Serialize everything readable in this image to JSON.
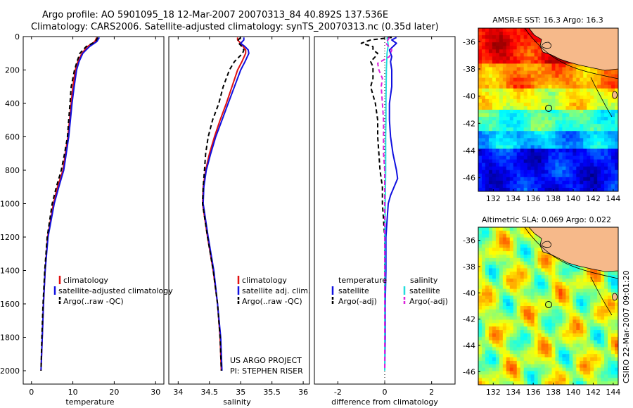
{
  "figure": {
    "title_line1": "Argo profile: AO 5901095_18 12-Mar-2007 20070313_84 40.892S 137.536E",
    "title_line2": "Climatology: CARS2006. Satellite-adjusted climatology: synTS_20070313.nc (0.35d later)",
    "credit_project": "US ARGO PROJECT",
    "credit_pi": "PI: STEPHEN RISER",
    "stamp": "CSIRO 22-Mar-2007 09:01:20"
  },
  "colors": {
    "climatology": "#e01010",
    "satellite": "#1010e0",
    "argo": "#000000",
    "sat_salinity": "#22dddd",
    "argo_salinity": "#dd22dd",
    "land": "#f6b98a"
  },
  "chart_data": [
    {
      "type": "line",
      "name": "temperature-profile",
      "xlabel": "temperature",
      "ylabel": "",
      "xlim": [
        -2,
        32
      ],
      "ylim": [
        2080,
        0
      ],
      "xticks": [
        0,
        10,
        20,
        30
      ],
      "yticks": [
        0,
        200,
        400,
        600,
        800,
        1000,
        1200,
        1400,
        1600,
        1800,
        2000
      ],
      "legend": [
        "climatology",
        "satellite-adjusted climatology",
        "Argo(..raw -QC)"
      ],
      "series": [
        {
          "name": "climatology",
          "color": "#e01010",
          "dash": "",
          "depth": [
            5,
            30,
            60,
            100,
            150,
            200,
            300,
            400,
            500,
            600,
            700,
            800,
            900,
            1000,
            1200,
            1400,
            1600,
            1800,
            2000
          ],
          "values": [
            15.8,
            15.3,
            13.5,
            12.2,
            11.2,
            10.6,
            10.0,
            9.6,
            9.2,
            8.8,
            8.2,
            7.6,
            6.3,
            5.3,
            3.9,
            3.3,
            2.9,
            2.6,
            2.3
          ]
        },
        {
          "name": "satellite",
          "color": "#1010e0",
          "dash": "",
          "depth": [
            5,
            30,
            60,
            100,
            150,
            200,
            300,
            400,
            500,
            600,
            700,
            800,
            900,
            1000,
            1200,
            1400,
            1600,
            1800,
            2000
          ],
          "values": [
            16.4,
            15.8,
            14.0,
            12.4,
            11.5,
            10.9,
            10.3,
            9.8,
            9.4,
            9.0,
            8.4,
            7.8,
            6.6,
            5.5,
            4.0,
            3.3,
            2.9,
            2.6,
            2.3
          ]
        },
        {
          "name": "Argo",
          "color": "#000000",
          "dash": "6 4",
          "depth": [
            5,
            30,
            60,
            100,
            150,
            200,
            300,
            400,
            500,
            600,
            700,
            800,
            900,
            1000,
            1200,
            1400,
            1600,
            1800,
            2000
          ],
          "values": [
            16.0,
            15.5,
            13.2,
            11.7,
            11.0,
            10.4,
            9.6,
            9.3,
            9.0,
            8.7,
            8.0,
            7.2,
            6.0,
            5.0,
            3.8,
            3.2,
            2.8,
            2.5,
            2.3
          ]
        }
      ]
    },
    {
      "type": "line",
      "name": "salinity-profile",
      "xlabel": "salinity",
      "ylabel": "",
      "xlim": [
        33.85,
        36.1
      ],
      "ylim": [
        2080,
        0
      ],
      "xticks": [
        34,
        34.5,
        35,
        35.5,
        36
      ],
      "yticks": [],
      "legend": [
        "climatology",
        "satellite adj. clim.",
        "Argo(..raw -QC)"
      ],
      "series": [
        {
          "name": "climatology",
          "color": "#e01010",
          "dash": "",
          "depth": [
            5,
            20,
            40,
            60,
            80,
            100,
            150,
            200,
            300,
            400,
            500,
            600,
            700,
            800,
            900,
            1000,
            1200,
            1400,
            1600,
            1800,
            2000
          ],
          "values": [
            34.95,
            34.95,
            35.0,
            35.04,
            35.08,
            35.08,
            35.02,
            34.95,
            34.86,
            34.77,
            34.67,
            34.58,
            34.5,
            34.44,
            34.4,
            34.39,
            34.47,
            34.56,
            34.63,
            34.67,
            34.69
          ]
        },
        {
          "name": "satellite",
          "color": "#1010e0",
          "dash": "",
          "depth": [
            5,
            20,
            40,
            60,
            80,
            100,
            150,
            200,
            300,
            400,
            500,
            600,
            700,
            800,
            900,
            1000,
            1200,
            1400,
            1600,
            1800,
            2000
          ],
          "values": [
            35.05,
            35.05,
            35.0,
            35.07,
            35.12,
            35.13,
            35.07,
            35.0,
            34.9,
            34.8,
            34.7,
            34.6,
            34.52,
            34.45,
            34.41,
            34.4,
            34.48,
            34.57,
            34.63,
            34.68,
            34.7
          ]
        },
        {
          "name": "Argo",
          "color": "#000000",
          "dash": "6 4",
          "depth": [
            5,
            20,
            40,
            60,
            80,
            100,
            150,
            200,
            300,
            400,
            500,
            600,
            700,
            800,
            900,
            1000,
            1200,
            1400,
            1600,
            1800,
            2000
          ],
          "values": [
            35.0,
            34.96,
            34.97,
            35.02,
            35.05,
            35.03,
            34.9,
            34.82,
            34.72,
            34.65,
            34.55,
            34.48,
            34.44,
            34.42,
            34.4,
            34.39,
            34.47,
            34.56,
            34.63,
            34.67,
            34.69
          ]
        }
      ]
    },
    {
      "type": "line",
      "name": "difference-profile",
      "xlabel": "difference from climatology",
      "ylabel": "",
      "xlim": [
        -3,
        3
      ],
      "ylim": [
        2080,
        0
      ],
      "xticks": [
        -2,
        0,
        2
      ],
      "yticks": [],
      "legend_groups": [
        "temperature",
        "salinity"
      ],
      "legend": [
        "satellite",
        "Argo(-adj)",
        "satellite",
        "Argo(-adj)"
      ],
      "series": [
        {
          "name": "temperature satellite",
          "color": "#1010e0",
          "dash": "",
          "depth": [
            5,
            20,
            40,
            80,
            120,
            150,
            200,
            300,
            400,
            500,
            600,
            700,
            800,
            850,
            900,
            950,
            1000,
            1200,
            1400,
            1600,
            1800,
            2000
          ],
          "values": [
            0.5,
            0.3,
            0.5,
            0.2,
            0.3,
            0.25,
            0.3,
            0.3,
            0.2,
            0.2,
            0.25,
            0.35,
            0.5,
            0.55,
            0.4,
            0.25,
            0.15,
            0.05,
            0.05,
            0.02,
            0.02,
            0.0
          ]
        },
        {
          "name": "temperature Argo(-adj)",
          "color": "#000000",
          "dash": "6 4",
          "depth": [
            5,
            20,
            40,
            60,
            80,
            100,
            120,
            150,
            180,
            200,
            250,
            300,
            400,
            500,
            600,
            700,
            800,
            900,
            1000,
            1200,
            1400,
            1600,
            1800,
            2000
          ],
          "values": [
            0.3,
            -0.6,
            -1.0,
            -0.5,
            -0.5,
            -0.3,
            -0.4,
            -0.6,
            -0.5,
            -0.5,
            -0.5,
            -0.6,
            -0.4,
            -0.3,
            -0.3,
            -0.25,
            -0.2,
            -0.1,
            -0.1,
            0.0,
            0.0,
            0.0,
            0.0,
            0.0
          ]
        },
        {
          "name": "salinity satellite",
          "color": "#22dddd",
          "dash": "",
          "depth": [
            5,
            50,
            100,
            200,
            300,
            400,
            500,
            600,
            800,
            1000,
            1200,
            1400,
            1600,
            1800,
            2000
          ],
          "values": [
            0.1,
            0.15,
            0.1,
            0.07,
            0.06,
            0.05,
            0.05,
            0.04,
            0.04,
            0.02,
            0.01,
            0.01,
            0.0,
            0.0,
            0.0
          ]
        },
        {
          "name": "salinity Argo(-adj)",
          "color": "#dd22dd",
          "dash": "6 4",
          "depth": [
            5,
            40,
            80,
            120,
            160,
            200,
            250,
            300,
            400,
            500,
            600,
            700,
            800,
            900,
            1000,
            1200,
            1400,
            1600,
            1800,
            2000
          ],
          "values": [
            0.2,
            0.05,
            0.3,
            0.2,
            -0.3,
            -0.25,
            -0.1,
            -0.15,
            -0.1,
            -0.05,
            -0.05,
            -0.05,
            0.0,
            0.0,
            0.0,
            0.0,
            0.0,
            0.0,
            0.0,
            0.0
          ]
        }
      ]
    },
    {
      "type": "heatmap",
      "name": "sst-map",
      "title": "AMSR-E SST: 16.3 Argo: 16.3",
      "xlim": [
        130.5,
        144.5
      ],
      "ylim": [
        -47,
        -35
      ],
      "xticks": [
        132,
        134,
        136,
        138,
        140,
        142,
        144
      ],
      "yticks": [
        -36,
        -38,
        -40,
        -42,
        -44,
        -46
      ],
      "marker": {
        "lon": 137.536,
        "lat": -40.892
      },
      "value_bands": [
        {
          "lat_from": -35,
          "lat_to": -37.5,
          "value": 19.5
        },
        {
          "lat_from": -37.5,
          "lat_to": -39.5,
          "value": 18.0
        },
        {
          "lat_from": -39.5,
          "lat_to": -41.0,
          "value": 16.5
        },
        {
          "lat_from": -41.0,
          "lat_to": -42.5,
          "value": 14.5
        },
        {
          "lat_from": -42.5,
          "lat_to": -44.0,
          "value": 13.0
        },
        {
          "lat_from": -44.0,
          "lat_to": -47.0,
          "value": 11.0
        }
      ]
    },
    {
      "type": "heatmap",
      "name": "sla-map",
      "title": "Altimetric SLA: 0.069 Argo: 0.022",
      "xlim": [
        130.5,
        144.5
      ],
      "ylim": [
        -47,
        -35
      ],
      "xticks": [
        132,
        134,
        136,
        138,
        140,
        142,
        144
      ],
      "yticks": [
        -36,
        -38,
        -40,
        -42,
        -44,
        -46
      ],
      "marker": {
        "lon": 137.536,
        "lat": -40.892
      }
    }
  ]
}
